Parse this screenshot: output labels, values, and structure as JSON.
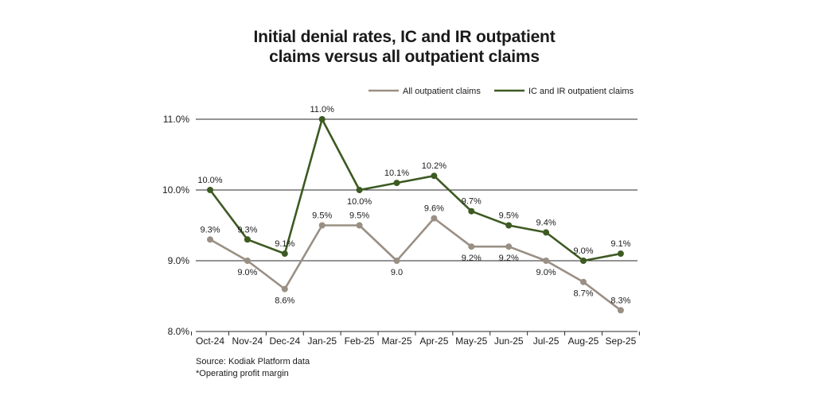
{
  "title_lines": [
    "Initial denial rates, IC and IR outpatient",
    "claims versus all outpatient claims"
  ],
  "source_lines": [
    "Source: Kodiak Platform data",
    "*Operating profit margin"
  ],
  "colors": {
    "ic_ir": "#3d5a22",
    "all": "#9a8f84",
    "grid": "#2a2a2a"
  },
  "chart_data": {
    "type": "line",
    "title": "Initial denial rates, IC and IR outpatient claims versus all outpatient claims",
    "xlabel": "",
    "ylabel": "",
    "ylim": [
      8.0,
      11.0
    ],
    "yticks": [
      {
        "value": 8.0,
        "label": "8.0%"
      },
      {
        "value": 9.0,
        "label": "9.0%"
      },
      {
        "value": 10.0,
        "label": "10.0%"
      },
      {
        "value": 11.0,
        "label": "11.0%"
      }
    ],
    "categories": [
      "Oct-24",
      "Nov-24",
      "Dec-24",
      "Jan-25",
      "Feb-25",
      "Mar-25",
      "Apr-25",
      "May-25",
      "Jun-25",
      "Jul-25",
      "Aug-25",
      "Sep-25"
    ],
    "legend_position": "top-right",
    "series": [
      {
        "name": "All outpatient claims",
        "key": "all",
        "values": [
          9.3,
          9.0,
          8.6,
          9.5,
          9.5,
          9.0,
          9.6,
          9.2,
          9.2,
          9.0,
          8.7,
          8.3
        ],
        "labels": [
          "9.3%",
          "9.0%",
          "8.6%",
          "9.5%",
          "9.5%",
          "9.0",
          "9.6%",
          "9.2%",
          "9.2%",
          "9.0%",
          "8.7%",
          "8.3%"
        ],
        "label_side": [
          "above",
          "below",
          "below",
          "above",
          "above",
          "below",
          "above",
          "below",
          "below",
          "below",
          "below",
          "above"
        ]
      },
      {
        "name": "IC and IR outpatient claims",
        "key": "ic_ir",
        "values": [
          10.0,
          9.3,
          9.1,
          11.0,
          10.0,
          10.1,
          10.2,
          9.7,
          9.5,
          9.4,
          9.0,
          9.1
        ],
        "labels": [
          "10.0%",
          "9.3%",
          "9.1%",
          "11.0%",
          "10.0%",
          "10.1%",
          "10.2%",
          "9.7%",
          "9.5%",
          "9.4%",
          "9.0%",
          "9.1%"
        ],
        "label_side": [
          "above",
          "above",
          "above",
          "above",
          "below",
          "above",
          "above",
          "above",
          "above",
          "above",
          "above",
          "above"
        ]
      }
    ]
  }
}
